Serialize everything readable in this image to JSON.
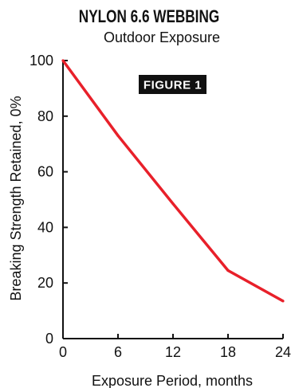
{
  "chart_data": {
    "type": "line",
    "title": "NYLON 6.6 WEBBING",
    "subtitle": "Outdoor Exposure",
    "annotation": "FIGURE 1",
    "xlabel": "Exposure Period, months",
    "ylabel": "Breaking Strength Retained, 0%",
    "x_ticks": [
      0,
      6,
      12,
      18,
      24
    ],
    "y_ticks": [
      0,
      20,
      40,
      60,
      80,
      100
    ],
    "xlim": [
      0,
      24
    ],
    "ylim": [
      0,
      100
    ],
    "grid": false,
    "line_color": "#e8202a",
    "x": [
      0,
      6,
      12,
      18,
      24
    ],
    "y": [
      100,
      73,
      48.5,
      24.5,
      13.5
    ]
  }
}
